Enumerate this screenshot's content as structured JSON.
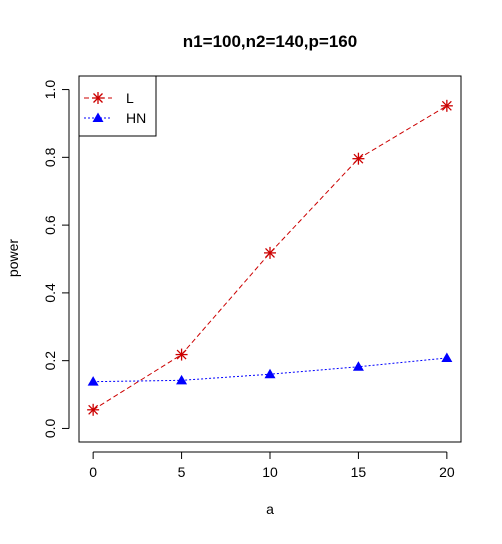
{
  "chart_data": {
    "type": "line",
    "title": "n1=100,n2=140,p=160",
    "xlabel": "a",
    "ylabel": "power",
    "x": [
      0,
      5,
      10,
      15,
      20
    ],
    "xlim": [
      -0.8,
      20.8
    ],
    "ylim": [
      -0.04,
      1.04
    ],
    "xticks": [
      0,
      5,
      10,
      15,
      20
    ],
    "yticks": [
      0.0,
      0.2,
      0.4,
      0.6,
      0.8,
      1.0
    ],
    "xtick_labels": [
      "0",
      "5",
      "10",
      "15",
      "20"
    ],
    "ytick_labels": [
      "0.0",
      "0.2",
      "0.4",
      "0.6",
      "0.8",
      "1.0"
    ],
    "grid": false,
    "legend_position": "top-left",
    "series": [
      {
        "name": "L",
        "values": [
          0.055,
          0.218,
          0.518,
          0.796,
          0.952
        ],
        "color": "#cc0000",
        "marker": "asterisk",
        "line_style": "dashed"
      },
      {
        "name": "HN",
        "values": [
          0.138,
          0.142,
          0.16,
          0.182,
          0.208
        ],
        "color": "#0000ff",
        "marker": "triangle",
        "line_style": "dotted"
      }
    ]
  }
}
